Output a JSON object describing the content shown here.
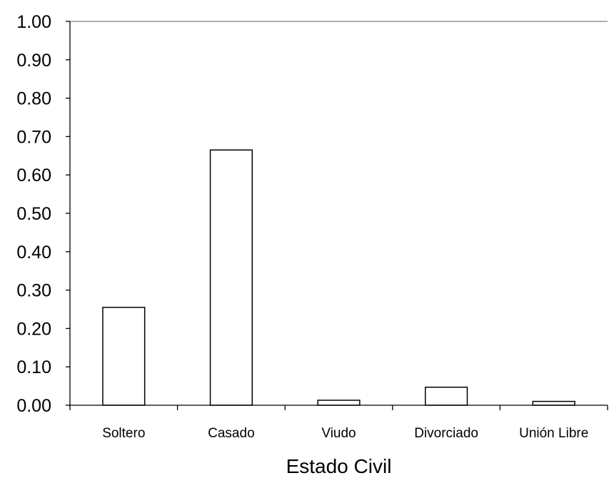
{
  "chart_data": {
    "type": "bar",
    "categories": [
      "Soltero",
      "Casado",
      "Viudo",
      "Divorciado",
      "Unión Libre"
    ],
    "values": [
      0.255,
      0.665,
      0.013,
      0.047,
      0.01
    ],
    "title": "",
    "xlabel": "Estado Civil",
    "ylabel": "",
    "ylim": [
      0,
      1
    ],
    "yticks": [
      "0.00",
      "0.10",
      "0.20",
      "0.30",
      "0.40",
      "0.50",
      "0.60",
      "0.70",
      "0.80",
      "0.90",
      "1.00"
    ],
    "grid": false,
    "bar_fill": "#ffffff",
    "bar_stroke": "#000000",
    "top_border_color": "#808080"
  }
}
